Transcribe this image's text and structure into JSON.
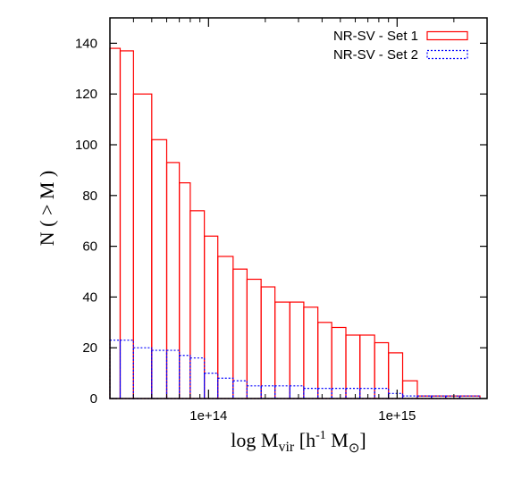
{
  "chart_data": {
    "type": "bar",
    "subtype": "step-histogram",
    "xscale": "log",
    "xlim": [
      30000000000000,
      3000000000000000
    ],
    "ylim": [
      0,
      150
    ],
    "ylabel": "N ( > M )",
    "xlabel": {
      "prefix": "log M",
      "sub1": "vir",
      "mid": " [h",
      "sup": "-1",
      "mid2": " M",
      "sub2": "⊙",
      "suffix": "]"
    },
    "xticks": [
      {
        "value": 100000000000000,
        "label": "1e+14"
      },
      {
        "value": 1000000000000000,
        "label": "1e+15"
      }
    ],
    "yticks": [
      0,
      20,
      40,
      60,
      80,
      100,
      120,
      140
    ],
    "bin_edges": [
      30000000000000,
      34000000000000,
      40000000000000,
      50000000000000,
      60000000000000,
      70000000000000,
      80000000000000,
      95000000000000,
      112000000000000,
      135000000000000,
      160000000000000,
      190000000000000,
      225000000000000,
      270000000000000,
      320000000000000,
      380000000000000,
      450000000000000,
      535000000000000,
      635000000000000,
      760000000000000,
      900000000000000,
      1070000000000000,
      1280000000000000,
      1520000000000000,
      1810000000000000,
      2150000000000000,
      2750000000000000
    ],
    "series": [
      {
        "name": "NR-SV - Set 1",
        "color": "#ff0000",
        "style": "solid",
        "values": [
          138,
          137,
          120,
          102,
          93,
          85,
          74,
          64,
          56,
          51,
          47,
          44,
          38,
          38,
          36,
          30,
          28,
          25,
          25,
          22,
          18,
          7,
          1,
          1,
          1,
          1
        ]
      },
      {
        "name": "NR-SV - Set 2",
        "color": "#0000ff",
        "style": "dotted",
        "values": [
          23,
          23,
          20,
          19,
          19,
          17,
          16,
          10,
          8,
          7,
          5,
          5,
          5,
          5,
          4,
          4,
          4,
          4,
          4,
          4,
          2,
          1,
          1,
          1,
          1,
          1
        ]
      }
    ],
    "legend_position": "top-right",
    "grid": false
  }
}
